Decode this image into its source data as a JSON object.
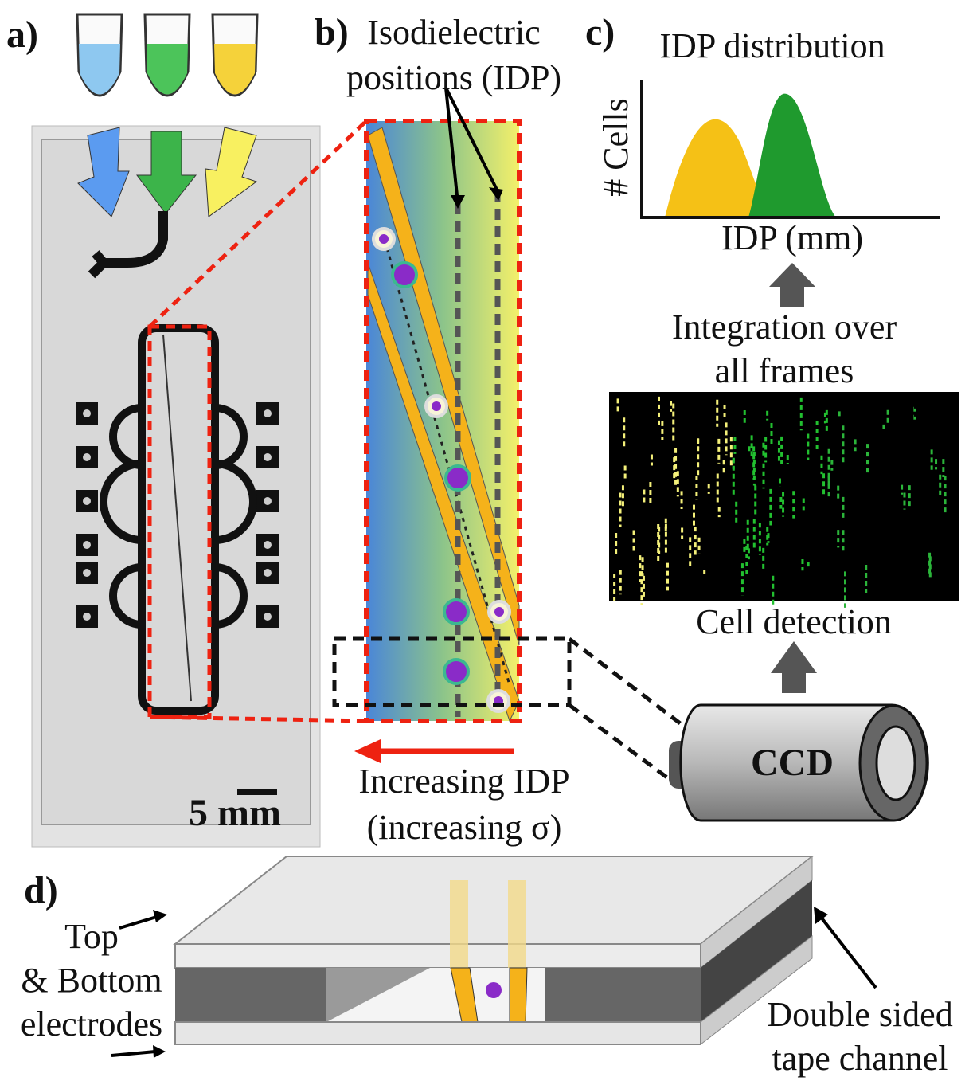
{
  "panels": {
    "a": {
      "label": "a)",
      "scale_bar": "5 mm"
    },
    "b": {
      "label": "b)",
      "title_lines": [
        "Isodielectric",
        "positions (IDP)"
      ],
      "arrow_lines": [
        "Increasing IDP",
        "(increasing σ)"
      ]
    },
    "c": {
      "label": "c)",
      "title": "IDP distribution",
      "y_axis_label": "# Cells",
      "x_axis_label": "IDP (mm)",
      "step_lines": [
        "Integration over",
        "all frames"
      ],
      "detection": "Cell detection",
      "camera": "CCD"
    },
    "d": {
      "label": "d)",
      "electrode_lines": [
        "Top",
        "& Bottom",
        "electrodes"
      ],
      "tape_lines": [
        "Double sided",
        "tape channel"
      ]
    }
  }
}
